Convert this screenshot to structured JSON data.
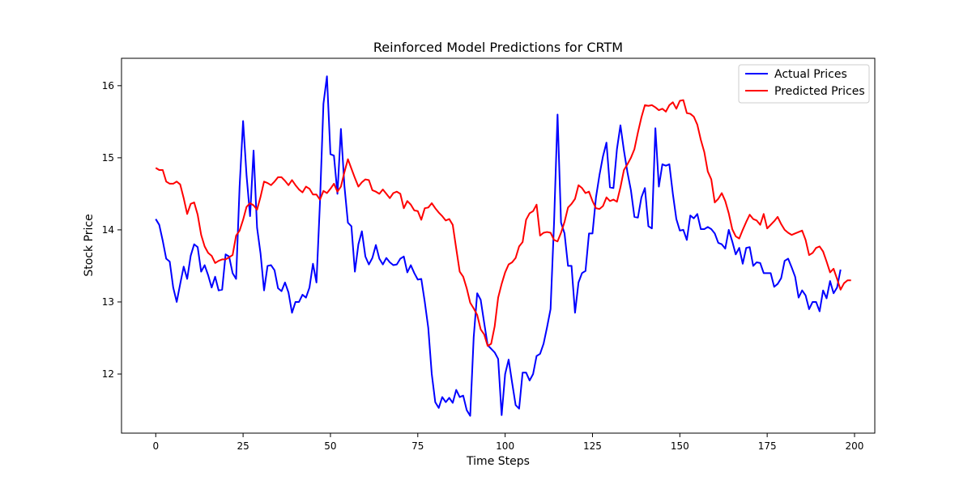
{
  "chart_data": {
    "type": "line",
    "title": "Reinforced Model Predictions for CRTM",
    "xlabel": "Time Steps",
    "ylabel": "Stock Price",
    "xlim": [
      -9.8,
      205.8
    ],
    "ylim": [
      11.18,
      16.38
    ],
    "xticks": [
      0,
      25,
      50,
      75,
      100,
      125,
      150,
      175,
      200
    ],
    "yticks": [
      12,
      13,
      14,
      15,
      16
    ],
    "grid": false,
    "legend_position": "top-right",
    "series": [
      {
        "name": "Actual Prices",
        "color": "#0000ff",
        "values": [
          14.15,
          14.07,
          13.85,
          13.6,
          13.56,
          13.2,
          13.0,
          13.25,
          13.49,
          13.32,
          13.64,
          13.8,
          13.76,
          13.42,
          13.51,
          13.37,
          13.2,
          13.35,
          13.16,
          13.17,
          13.66,
          13.63,
          13.4,
          13.32,
          14.6,
          15.51,
          14.75,
          14.19,
          15.1,
          14.03,
          13.67,
          13.16,
          13.5,
          13.51,
          13.44,
          13.19,
          13.15,
          13.27,
          13.13,
          12.85,
          13.0,
          13.0,
          13.1,
          13.06,
          13.2,
          13.53,
          13.27,
          14.38,
          15.75,
          16.13,
          15.05,
          15.03,
          14.5,
          15.4,
          14.61,
          14.1,
          14.05,
          13.42,
          13.8,
          13.98,
          13.63,
          13.52,
          13.61,
          13.79,
          13.6,
          13.52,
          13.61,
          13.55,
          13.51,
          13.52,
          13.6,
          13.63,
          13.41,
          13.51,
          13.4,
          13.31,
          13.32,
          13.0,
          12.64,
          12.0,
          11.61,
          11.53,
          11.68,
          11.61,
          11.67,
          11.6,
          11.78,
          11.68,
          11.7,
          11.5,
          11.42,
          12.51,
          13.12,
          13.03,
          12.71,
          12.4,
          12.35,
          12.3,
          12.21,
          11.43,
          12.0,
          12.2,
          11.88,
          11.57,
          11.52,
          12.02,
          12.02,
          11.91,
          12.0,
          12.25,
          12.28,
          12.42,
          12.65,
          12.9,
          14.1,
          15.6,
          14.1,
          13.95,
          13.5,
          13.5,
          12.85,
          13.27,
          13.4,
          13.43,
          13.95,
          13.95,
          14.45,
          14.76,
          15.02,
          15.21,
          14.59,
          14.58,
          15.12,
          15.45,
          15.1,
          14.8,
          14.55,
          14.18,
          14.17,
          14.45,
          14.58,
          14.05,
          14.02,
          15.41,
          14.6,
          14.91,
          14.89,
          14.91,
          14.5,
          14.15,
          13.99,
          14.0,
          13.86,
          14.2,
          14.16,
          14.22,
          14.01,
          14.01,
          14.04,
          14.01,
          13.95,
          13.82,
          13.8,
          13.74,
          14.0,
          13.84,
          13.66,
          13.75,
          13.53,
          13.75,
          13.76,
          13.5,
          13.55,
          13.54,
          13.4,
          13.4,
          13.4,
          13.21,
          13.25,
          13.33,
          13.57,
          13.6,
          13.48,
          13.35,
          13.06,
          13.16,
          13.09,
          12.9,
          13.0,
          13.0,
          12.87,
          13.16,
          13.05,
          13.29,
          13.12,
          13.2,
          13.45
        ]
      },
      {
        "name": "Predicted Prices",
        "color": "#ff0000",
        "values": [
          14.86,
          14.83,
          14.83,
          14.67,
          14.64,
          14.64,
          14.67,
          14.63,
          14.44,
          14.22,
          14.36,
          14.38,
          14.21,
          13.93,
          13.77,
          13.68,
          13.64,
          13.54,
          13.57,
          13.59,
          13.59,
          13.62,
          13.65,
          13.92,
          13.99,
          14.14,
          14.32,
          14.37,
          14.34,
          14.28,
          14.46,
          14.67,
          14.65,
          14.62,
          14.67,
          14.73,
          14.73,
          14.68,
          14.62,
          14.69,
          14.62,
          14.56,
          14.52,
          14.6,
          14.57,
          14.49,
          14.49,
          14.42,
          14.54,
          14.51,
          14.57,
          14.64,
          14.53,
          14.6,
          14.8,
          14.98,
          14.85,
          14.72,
          14.6,
          14.66,
          14.7,
          14.69,
          14.55,
          14.53,
          14.5,
          14.56,
          14.5,
          14.44,
          14.51,
          14.53,
          14.5,
          14.3,
          14.4,
          14.35,
          14.27,
          14.26,
          14.14,
          14.3,
          14.31,
          14.37,
          14.3,
          14.24,
          14.19,
          14.13,
          14.15,
          14.07,
          13.74,
          13.42,
          13.35,
          13.19,
          12.99,
          12.91,
          12.82,
          12.62,
          12.55,
          12.39,
          12.42,
          12.66,
          13.06,
          13.25,
          13.41,
          13.52,
          13.55,
          13.61,
          13.77,
          13.83,
          14.14,
          14.23,
          14.26,
          14.35,
          13.92,
          13.96,
          13.97,
          13.96,
          13.86,
          13.84,
          13.96,
          14.11,
          14.31,
          14.36,
          14.43,
          14.62,
          14.58,
          14.51,
          14.53,
          14.4,
          14.3,
          14.29,
          14.33,
          14.45,
          14.4,
          14.42,
          14.39,
          14.59,
          14.83,
          14.91,
          15.0,
          15.12,
          15.35,
          15.56,
          15.73,
          15.72,
          15.73,
          15.7,
          15.66,
          15.68,
          15.64,
          15.73,
          15.77,
          15.68,
          15.79,
          15.8,
          15.62,
          15.61,
          15.57,
          15.46,
          15.25,
          15.08,
          14.81,
          14.7,
          14.38,
          14.43,
          14.51,
          14.4,
          14.23,
          14.01,
          13.91,
          13.88,
          14.0,
          14.11,
          14.21,
          14.15,
          14.13,
          14.07,
          14.22,
          14.02,
          14.07,
          14.12,
          14.18,
          14.08,
          14.0,
          13.96,
          13.93,
          13.95,
          13.97,
          13.99,
          13.86,
          13.65,
          13.68,
          13.75,
          13.77,
          13.7,
          13.56,
          13.41,
          13.46,
          13.32,
          13.17,
          13.26,
          13.3,
          13.3
        ]
      }
    ]
  }
}
